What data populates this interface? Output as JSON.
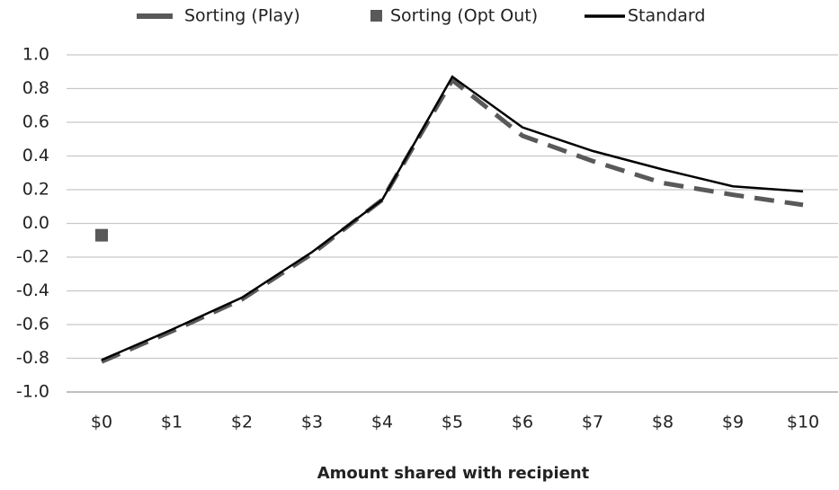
{
  "chart_data": {
    "type": "line",
    "x_label": "Amount shared with recipient",
    "categories": [
      "$0",
      "$1",
      "$2",
      "$3",
      "$4",
      "$5",
      "$6",
      "$7",
      "$8",
      "$9",
      "$10"
    ],
    "series": [
      {
        "name": "Sorting (Play)",
        "color": "#595959",
        "line_style": "dashed",
        "values": [
          -0.82,
          -0.64,
          -0.45,
          -0.18,
          0.14,
          0.85,
          0.52,
          0.37,
          0.24,
          0.17,
          0.11
        ]
      },
      {
        "name": "Sorting (Opt Out)",
        "color": "#595959",
        "line_style": "none",
        "marker": "square",
        "values": [
          -0.07,
          null,
          null,
          null,
          null,
          null,
          null,
          null,
          null,
          null,
          null
        ]
      },
      {
        "name": "Standard",
        "color": "#000000",
        "line_style": "solid",
        "values": [
          -0.81,
          -0.63,
          -0.44,
          -0.17,
          0.14,
          0.87,
          0.57,
          0.43,
          0.32,
          0.22,
          0.19
        ]
      }
    ],
    "ylim": [
      -1.0,
      1.0
    ],
    "yticks": [
      {
        "value": -1.0,
        "label": "-1.0"
      },
      -0.8,
      -0.6,
      -0.4,
      -0.2,
      {
        "value": 0.0,
        "label": "0.0"
      },
      0.2,
      0.4,
      0.6,
      0.8,
      {
        "value": 1.0,
        "label": "1.0"
      }
    ],
    "grid": true,
    "legend": "top"
  }
}
